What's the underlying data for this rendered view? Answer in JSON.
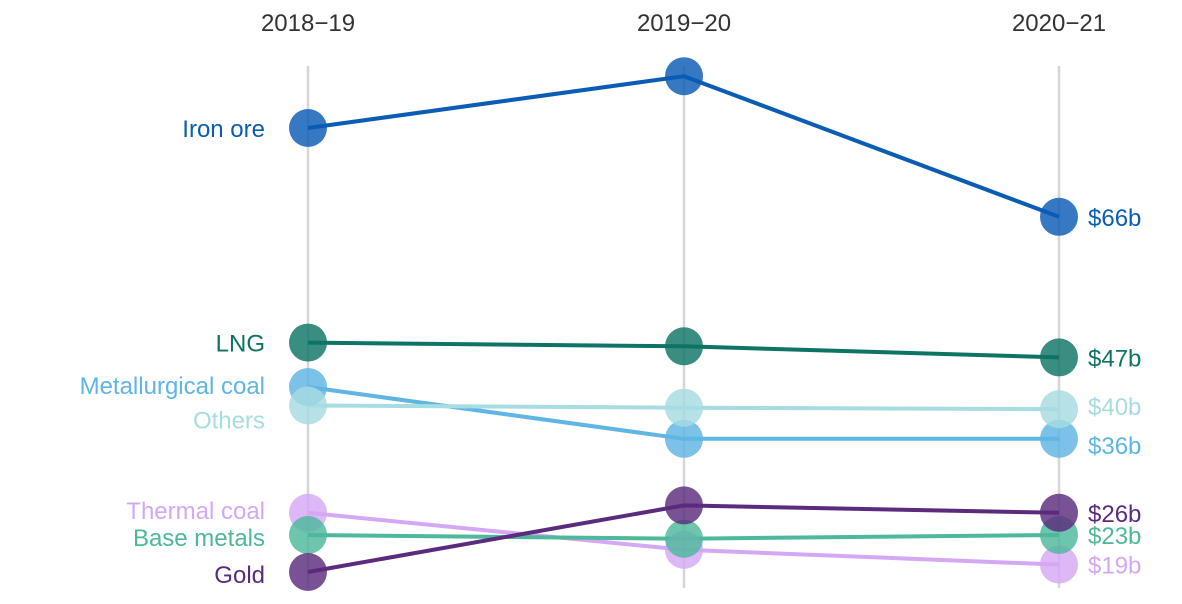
{
  "chart_data": {
    "type": "line",
    "title": "",
    "xlabel": "",
    "ylabel": "",
    "categories": [
      "2018−19",
      "2019−20",
      "2020−21"
    ],
    "grid": "vertical lines at each period",
    "legend": "series names at left of first point; end values at right of last point",
    "series": [
      {
        "name": "Iron ore",
        "values": [
          78,
          85,
          66
        ],
        "end_label": "$66b",
        "color": "#0a5cb5"
      },
      {
        "name": "LNG",
        "values": [
          49,
          48.5,
          47
        ],
        "end_label": "$47b",
        "color": "#0e7465"
      },
      {
        "name": "Metallurgical coal",
        "values": [
          43,
          36,
          36
        ],
        "end_label": "$36b",
        "color": "#5fb5e3"
      },
      {
        "name": "Others",
        "values": [
          40.5,
          40.2,
          40
        ],
        "end_label": "$40b",
        "color": "#a6dce2"
      },
      {
        "name": "Thermal coal",
        "values": [
          26,
          21,
          19
        ],
        "end_label": "$19b",
        "color": "#d4a8f4"
      },
      {
        "name": "Base metals",
        "values": [
          23,
          22.5,
          23
        ],
        "end_label": "$23b",
        "color": "#4db89c"
      },
      {
        "name": "Gold",
        "values": [
          18,
          27,
          26
        ],
        "end_label": "$26b",
        "color": "#5b2b7e"
      }
    ]
  }
}
